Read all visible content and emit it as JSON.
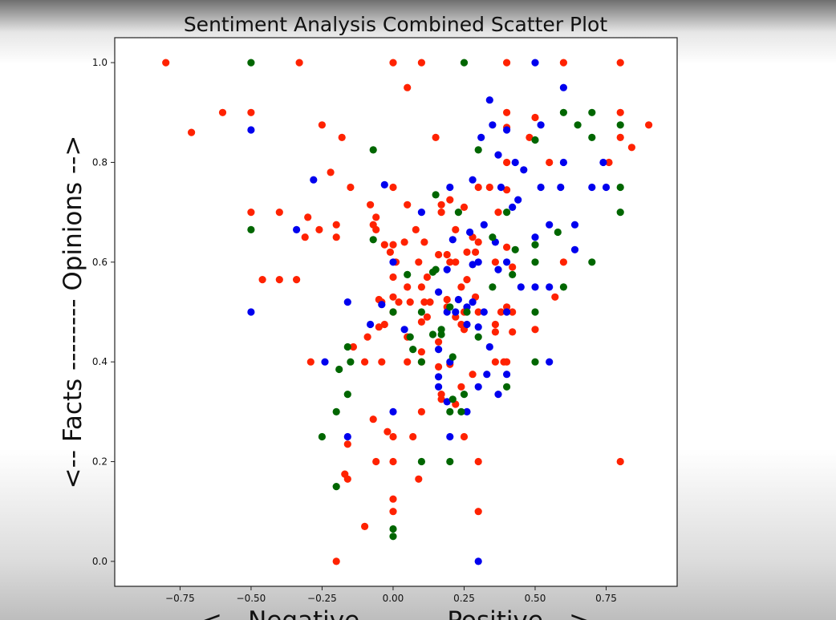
{
  "chart_data": {
    "type": "scatter",
    "title": "Sentiment Analysis Combined Scatter Plot",
    "xlabel": "<-- Negative -------- Positive -->",
    "ylabel": "<-- Facts -------- Opinions -->",
    "xlim": [
      -0.98,
      1.0
    ],
    "ylim": [
      -0.05,
      1.05
    ],
    "xticks": [
      "−0.75",
      "−0.50",
      "−0.25",
      "0.00",
      "0.25",
      "0.50",
      "0.75"
    ],
    "xtick_values": [
      -0.75,
      -0.5,
      -0.25,
      0.0,
      0.25,
      0.5,
      0.75
    ],
    "yticks": [
      "0.0",
      "0.2",
      "0.4",
      "0.6",
      "0.8",
      "1.0"
    ],
    "ytick_values": [
      0.0,
      0.2,
      0.4,
      0.6,
      0.8,
      1.0
    ],
    "grid": false,
    "legend": "none",
    "series": [
      {
        "color": "#ff2200",
        "points": [
          [
            -0.8,
            1.0
          ],
          [
            -0.33,
            1.0
          ],
          [
            0.0,
            1.0
          ],
          [
            0.1,
            1.0
          ],
          [
            0.4,
            1.0
          ],
          [
            0.6,
            1.0
          ],
          [
            0.8,
            1.0
          ],
          [
            0.05,
            0.95
          ],
          [
            -0.6,
            0.9
          ],
          [
            -0.5,
            0.9
          ],
          [
            0.4,
            0.9
          ],
          [
            0.5,
            0.89
          ],
          [
            0.8,
            0.9
          ],
          [
            -0.71,
            0.86
          ],
          [
            -0.25,
            0.875
          ],
          [
            -0.18,
            0.85
          ],
          [
            0.15,
            0.85
          ],
          [
            0.4,
            0.87
          ],
          [
            0.9,
            0.875
          ],
          [
            0.48,
            0.85
          ],
          [
            0.8,
            0.85
          ],
          [
            0.84,
            0.83
          ],
          [
            0.4,
            0.8
          ],
          [
            0.55,
            0.8
          ],
          [
            0.76,
            0.8
          ],
          [
            -0.22,
            0.78
          ],
          [
            -0.15,
            0.75
          ],
          [
            0.0,
            0.75
          ],
          [
            0.3,
            0.75
          ],
          [
            0.34,
            0.75
          ],
          [
            0.4,
            0.745
          ],
          [
            -0.5,
            0.7
          ],
          [
            -0.4,
            0.7
          ],
          [
            0.05,
            0.715
          ],
          [
            -0.08,
            0.715
          ],
          [
            0.17,
            0.715
          ],
          [
            0.2,
            0.725
          ],
          [
            0.25,
            0.71
          ],
          [
            0.37,
            0.7
          ],
          [
            -0.3,
            0.69
          ],
          [
            -0.06,
            0.69
          ],
          [
            0.17,
            0.7
          ],
          [
            -0.2,
            0.675
          ],
          [
            -0.26,
            0.665
          ],
          [
            -0.07,
            0.675
          ],
          [
            0.08,
            0.665
          ],
          [
            -0.06,
            0.665
          ],
          [
            0.22,
            0.665
          ],
          [
            -0.31,
            0.65
          ],
          [
            -0.2,
            0.65
          ],
          [
            0.28,
            0.65
          ],
          [
            -0.03,
            0.635
          ],
          [
            0.0,
            0.635
          ],
          [
            0.04,
            0.64
          ],
          [
            0.11,
            0.64
          ],
          [
            0.3,
            0.64
          ],
          [
            0.4,
            0.63
          ],
          [
            -0.01,
            0.62
          ],
          [
            0.16,
            0.615
          ],
          [
            0.19,
            0.615
          ],
          [
            0.26,
            0.62
          ],
          [
            0.29,
            0.62
          ],
          [
            0.6,
            0.6
          ],
          [
            0.01,
            0.6
          ],
          [
            0.09,
            0.6
          ],
          [
            0.2,
            0.6
          ],
          [
            0.22,
            0.6
          ],
          [
            0.36,
            0.6
          ],
          [
            0.42,
            0.59
          ],
          [
            0.0,
            0.57
          ],
          [
            0.12,
            0.57
          ],
          [
            0.26,
            0.565
          ],
          [
            -0.46,
            0.565
          ],
          [
            -0.4,
            0.565
          ],
          [
            -0.34,
            0.565
          ],
          [
            0.05,
            0.55
          ],
          [
            0.1,
            0.55
          ],
          [
            0.24,
            0.55
          ],
          [
            0.19,
            0.525
          ],
          [
            -0.05,
            0.525
          ],
          [
            0.0,
            0.53
          ],
          [
            0.13,
            0.52
          ],
          [
            0.29,
            0.53
          ],
          [
            0.57,
            0.53
          ],
          [
            -0.04,
            0.52
          ],
          [
            0.02,
            0.52
          ],
          [
            0.06,
            0.52
          ],
          [
            0.11,
            0.52
          ],
          [
            0.19,
            0.51
          ],
          [
            0.4,
            0.51
          ],
          [
            0.25,
            0.5
          ],
          [
            0.3,
            0.5
          ],
          [
            0.38,
            0.5
          ],
          [
            0.42,
            0.5
          ],
          [
            0.0,
            0.5
          ],
          [
            0.12,
            0.49
          ],
          [
            0.22,
            0.49
          ],
          [
            0.1,
            0.48
          ],
          [
            0.24,
            0.475
          ],
          [
            0.36,
            0.475
          ],
          [
            -0.05,
            0.47
          ],
          [
            -0.03,
            0.475
          ],
          [
            0.25,
            0.465
          ],
          [
            0.36,
            0.46
          ],
          [
            0.42,
            0.46
          ],
          [
            0.5,
            0.465
          ],
          [
            -0.09,
            0.45
          ],
          [
            0.05,
            0.45
          ],
          [
            0.16,
            0.44
          ],
          [
            -0.14,
            0.43
          ],
          [
            0.1,
            0.42
          ],
          [
            -0.29,
            0.4
          ],
          [
            -0.1,
            0.4
          ],
          [
            -0.04,
            0.4
          ],
          [
            0.05,
            0.4
          ],
          [
            0.1,
            0.4
          ],
          [
            0.36,
            0.4
          ],
          [
            0.39,
            0.4
          ],
          [
            0.4,
            0.4
          ],
          [
            0.2,
            0.395
          ],
          [
            0.16,
            0.39
          ],
          [
            0.28,
            0.375
          ],
          [
            0.24,
            0.35
          ],
          [
            0.17,
            0.335
          ],
          [
            0.17,
            0.325
          ],
          [
            0.22,
            0.315
          ],
          [
            0.1,
            0.3
          ],
          [
            -0.07,
            0.285
          ],
          [
            -0.02,
            0.26
          ],
          [
            0.0,
            0.25
          ],
          [
            0.07,
            0.25
          ],
          [
            0.25,
            0.25
          ],
          [
            -0.16,
            0.235
          ],
          [
            -0.06,
            0.2
          ],
          [
            0.0,
            0.2
          ],
          [
            0.3,
            0.2
          ],
          [
            0.8,
            0.2
          ],
          [
            -0.17,
            0.175
          ],
          [
            -0.16,
            0.165
          ],
          [
            0.09,
            0.165
          ],
          [
            0.0,
            0.125
          ],
          [
            0.0,
            0.1
          ],
          [
            0.3,
            0.1
          ],
          [
            -0.1,
            0.07
          ],
          [
            -0.2,
            0.0
          ]
        ]
      },
      {
        "color": "#0000ee",
        "points": [
          [
            0.5,
            1.0
          ],
          [
            0.6,
            0.95
          ],
          [
            0.34,
            0.925
          ],
          [
            0.35,
            0.875
          ],
          [
            0.52,
            0.875
          ],
          [
            -0.5,
            0.865
          ],
          [
            0.4,
            0.865
          ],
          [
            0.31,
            0.85
          ],
          [
            0.37,
            0.815
          ],
          [
            0.43,
            0.8
          ],
          [
            0.6,
            0.8
          ],
          [
            0.74,
            0.8
          ],
          [
            0.46,
            0.785
          ],
          [
            -0.28,
            0.765
          ],
          [
            0.28,
            0.765
          ],
          [
            -0.03,
            0.755
          ],
          [
            0.2,
            0.75
          ],
          [
            0.38,
            0.75
          ],
          [
            0.52,
            0.75
          ],
          [
            0.59,
            0.75
          ],
          [
            0.7,
            0.75
          ],
          [
            0.75,
            0.75
          ],
          [
            0.44,
            0.725
          ],
          [
            0.42,
            0.71
          ],
          [
            0.1,
            0.7
          ],
          [
            0.55,
            0.675
          ],
          [
            0.64,
            0.675
          ],
          [
            0.32,
            0.675
          ],
          [
            -0.34,
            0.665
          ],
          [
            0.27,
            0.66
          ],
          [
            0.5,
            0.65
          ],
          [
            0.21,
            0.645
          ],
          [
            0.36,
            0.64
          ],
          [
            0.64,
            0.625
          ],
          [
            0.0,
            0.6
          ],
          [
            0.28,
            0.595
          ],
          [
            0.4,
            0.6
          ],
          [
            0.37,
            0.585
          ],
          [
            0.19,
            0.585
          ],
          [
            0.3,
            0.6
          ],
          [
            0.45,
            0.55
          ],
          [
            0.5,
            0.55
          ],
          [
            0.55,
            0.55
          ],
          [
            -0.16,
            0.52
          ],
          [
            0.16,
            0.54
          ],
          [
            0.23,
            0.525
          ],
          [
            -0.04,
            0.515
          ],
          [
            0.28,
            0.52
          ],
          [
            0.26,
            0.51
          ],
          [
            -0.5,
            0.5
          ],
          [
            0.19,
            0.5
          ],
          [
            0.22,
            0.5
          ],
          [
            0.32,
            0.5
          ],
          [
            0.4,
            0.5
          ],
          [
            -0.08,
            0.475
          ],
          [
            0.26,
            0.475
          ],
          [
            0.3,
            0.47
          ],
          [
            0.04,
            0.465
          ],
          [
            0.34,
            0.43
          ],
          [
            0.16,
            0.425
          ],
          [
            -0.24,
            0.4
          ],
          [
            0.55,
            0.4
          ],
          [
            0.2,
            0.4
          ],
          [
            0.16,
            0.37
          ],
          [
            0.33,
            0.375
          ],
          [
            0.4,
            0.375
          ],
          [
            0.16,
            0.35
          ],
          [
            0.3,
            0.35
          ],
          [
            0.37,
            0.335
          ],
          [
            0.19,
            0.32
          ],
          [
            0.0,
            0.3
          ],
          [
            0.26,
            0.3
          ],
          [
            -0.16,
            0.25
          ],
          [
            0.2,
            0.25
          ],
          [
            0.3,
            0.0
          ]
        ]
      },
      {
        "color": "#006600",
        "points": [
          [
            -0.5,
            1.0
          ],
          [
            0.25,
            1.0
          ],
          [
            0.6,
            0.9
          ],
          [
            0.7,
            0.9
          ],
          [
            0.8,
            0.875
          ],
          [
            0.65,
            0.875
          ],
          [
            0.7,
            0.85
          ],
          [
            0.5,
            0.845
          ],
          [
            -0.07,
            0.825
          ],
          [
            0.3,
            0.825
          ],
          [
            0.8,
            0.75
          ],
          [
            0.15,
            0.735
          ],
          [
            0.23,
            0.7
          ],
          [
            0.4,
            0.7
          ],
          [
            0.8,
            0.7
          ],
          [
            -0.5,
            0.665
          ],
          [
            0.58,
            0.66
          ],
          [
            0.35,
            0.65
          ],
          [
            -0.07,
            0.645
          ],
          [
            0.5,
            0.635
          ],
          [
            0.43,
            0.625
          ],
          [
            0.5,
            0.6
          ],
          [
            0.7,
            0.6
          ],
          [
            0.15,
            0.585
          ],
          [
            0.14,
            0.58
          ],
          [
            0.05,
            0.575
          ],
          [
            0.42,
            0.575
          ],
          [
            0.6,
            0.55
          ],
          [
            0.35,
            0.55
          ],
          [
            0.2,
            0.51
          ],
          [
            0.0,
            0.5
          ],
          [
            0.1,
            0.5
          ],
          [
            0.26,
            0.5
          ],
          [
            0.5,
            0.5
          ],
          [
            0.17,
            0.465
          ],
          [
            0.17,
            0.455
          ],
          [
            0.14,
            0.455
          ],
          [
            0.3,
            0.45
          ],
          [
            0.06,
            0.45
          ],
          [
            -0.16,
            0.43
          ],
          [
            0.07,
            0.425
          ],
          [
            0.21,
            0.41
          ],
          [
            -0.15,
            0.4
          ],
          [
            0.1,
            0.4
          ],
          [
            0.5,
            0.4
          ],
          [
            -0.19,
            0.385
          ],
          [
            0.4,
            0.35
          ],
          [
            -0.16,
            0.335
          ],
          [
            0.25,
            0.335
          ],
          [
            0.21,
            0.325
          ],
          [
            0.2,
            0.3
          ],
          [
            -0.2,
            0.3
          ],
          [
            0.24,
            0.3
          ],
          [
            -0.25,
            0.25
          ],
          [
            0.1,
            0.2
          ],
          [
            0.2,
            0.2
          ],
          [
            -0.2,
            0.15
          ],
          [
            0.0,
            0.065
          ],
          [
            0.0,
            0.05
          ]
        ]
      }
    ]
  }
}
